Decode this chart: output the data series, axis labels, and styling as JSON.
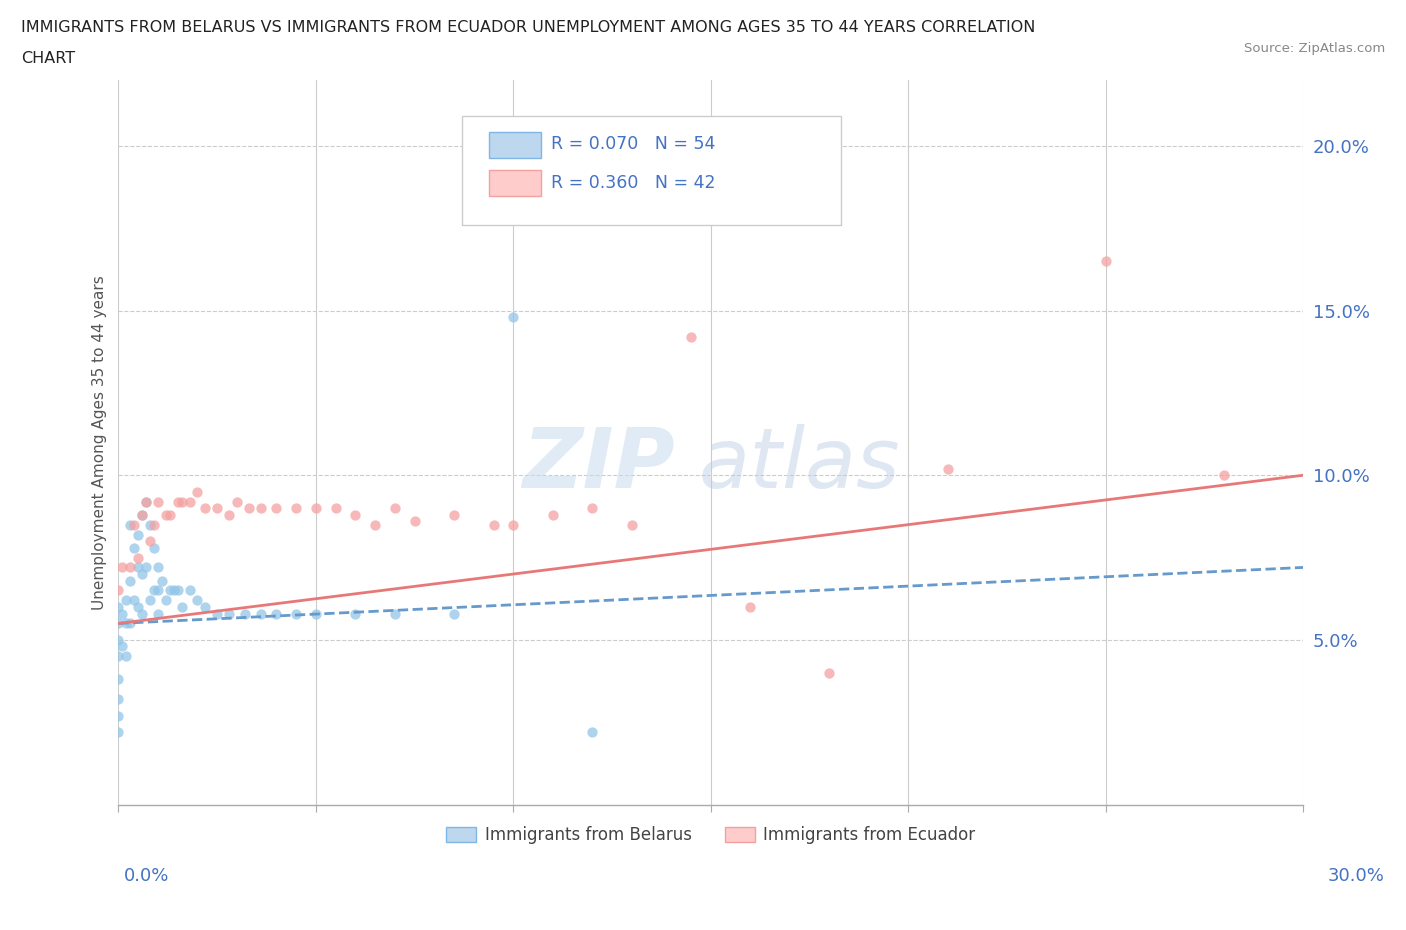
{
  "title_line1": "IMMIGRANTS FROM BELARUS VS IMMIGRANTS FROM ECUADOR UNEMPLOYMENT AMONG AGES 35 TO 44 YEARS CORRELATION",
  "title_line2": "CHART",
  "source": "Source: ZipAtlas.com",
  "ylabel": "Unemployment Among Ages 35 to 44 years",
  "xlim": [
    0.0,
    0.3
  ],
  "ylim": [
    0.0,
    0.22
  ],
  "color_belarus": "#92C5E8",
  "color_ecuador": "#F4A0A0",
  "color_trendline_belarus": "#6699CC",
  "color_trendline_ecuador": "#E87878",
  "watermark_zip": "ZIP",
  "watermark_atlas": "atlas",
  "belarus_x": [
    0.0,
    0.0,
    0.0,
    0.0,
    0.0,
    0.0,
    0.0,
    0.0,
    0.001,
    0.001,
    0.002,
    0.002,
    0.002,
    0.003,
    0.003,
    0.003,
    0.004,
    0.004,
    0.005,
    0.005,
    0.005,
    0.006,
    0.006,
    0.006,
    0.007,
    0.007,
    0.008,
    0.008,
    0.009,
    0.009,
    0.01,
    0.01,
    0.01,
    0.011,
    0.012,
    0.013,
    0.014,
    0.015,
    0.016,
    0.018,
    0.02,
    0.022,
    0.025,
    0.028,
    0.032,
    0.036,
    0.04,
    0.045,
    0.05,
    0.06,
    0.07,
    0.085,
    0.1,
    0.12
  ],
  "belarus_y": [
    0.06,
    0.055,
    0.05,
    0.045,
    0.038,
    0.032,
    0.027,
    0.022,
    0.058,
    0.048,
    0.062,
    0.055,
    0.045,
    0.085,
    0.068,
    0.055,
    0.078,
    0.062,
    0.082,
    0.072,
    0.06,
    0.088,
    0.07,
    0.058,
    0.092,
    0.072,
    0.085,
    0.062,
    0.078,
    0.065,
    0.072,
    0.065,
    0.058,
    0.068,
    0.062,
    0.065,
    0.065,
    0.065,
    0.06,
    0.065,
    0.062,
    0.06,
    0.058,
    0.058,
    0.058,
    0.058,
    0.058,
    0.058,
    0.058,
    0.058,
    0.058,
    0.058,
    0.148,
    0.022
  ],
  "ecuador_x": [
    0.0,
    0.001,
    0.003,
    0.004,
    0.005,
    0.006,
    0.007,
    0.008,
    0.009,
    0.01,
    0.012,
    0.013,
    0.015,
    0.016,
    0.018,
    0.02,
    0.022,
    0.025,
    0.028,
    0.03,
    0.033,
    0.036,
    0.04,
    0.045,
    0.05,
    0.055,
    0.06,
    0.065,
    0.07,
    0.075,
    0.085,
    0.095,
    0.1,
    0.11,
    0.12,
    0.13,
    0.145,
    0.16,
    0.18,
    0.21,
    0.25,
    0.28
  ],
  "ecuador_y": [
    0.065,
    0.072,
    0.072,
    0.085,
    0.075,
    0.088,
    0.092,
    0.08,
    0.085,
    0.092,
    0.088,
    0.088,
    0.092,
    0.092,
    0.092,
    0.095,
    0.09,
    0.09,
    0.088,
    0.092,
    0.09,
    0.09,
    0.09,
    0.09,
    0.09,
    0.09,
    0.088,
    0.085,
    0.09,
    0.086,
    0.088,
    0.085,
    0.085,
    0.088,
    0.09,
    0.085,
    0.142,
    0.06,
    0.04,
    0.102,
    0.165,
    0.1
  ]
}
